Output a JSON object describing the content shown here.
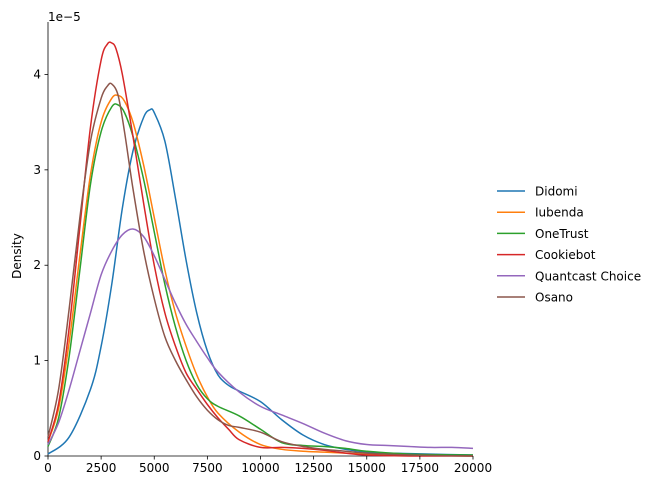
{
  "chart_data": {
    "type": "line",
    "title": "",
    "xlabel": "",
    "ylabel": "Density",
    "y_offset_text": "1e−5",
    "xlim": [
      0,
      20000
    ],
    "ylim": [
      0,
      4.55
    ],
    "y_scale": "×1e-5",
    "grid": false,
    "legend_position": "right (outside plot)",
    "x_ticks": [
      0,
      2500,
      5000,
      7500,
      10000,
      12500,
      15000,
      17500,
      20000
    ],
    "x_tick_labels": [
      "0",
      "2500",
      "5000",
      "7500",
      "10000",
      "12500",
      "15000",
      "17500",
      "20000"
    ],
    "y_ticks": [
      0,
      1,
      2,
      3,
      4
    ],
    "y_tick_labels": [
      "0",
      "1",
      "2",
      "3",
      "4"
    ],
    "series": [
      {
        "name": "Didomi",
        "color": "#1f77b4",
        "x": [
          0,
          1000,
          2000,
          2500,
          3000,
          3500,
          4000,
          4500,
          4800,
          5000,
          5500,
          6000,
          6500,
          7000,
          7500,
          8000,
          8500,
          9000,
          10000,
          11000,
          12000,
          13000,
          14000,
          15000,
          16000,
          18000,
          20000
        ],
        "y": [
          0.02,
          0.2,
          0.7,
          1.15,
          1.8,
          2.6,
          3.2,
          3.55,
          3.63,
          3.6,
          3.3,
          2.7,
          2.05,
          1.5,
          1.1,
          0.85,
          0.74,
          0.68,
          0.57,
          0.38,
          0.22,
          0.12,
          0.07,
          0.04,
          0.03,
          0.02,
          0.01
        ]
      },
      {
        "name": "Iubenda",
        "color": "#ff7f0e",
        "x": [
          0,
          500,
          1000,
          1500,
          2000,
          2500,
          3000,
          3300,
          3600,
          4000,
          4500,
          5000,
          5500,
          6000,
          6500,
          7000,
          7500,
          8000,
          9000,
          10000,
          11000,
          12000,
          13000,
          14000,
          15000,
          17000,
          20000
        ],
        "y": [
          0.15,
          0.5,
          1.2,
          2.1,
          2.95,
          3.5,
          3.75,
          3.78,
          3.72,
          3.5,
          3.05,
          2.5,
          1.95,
          1.5,
          1.15,
          0.85,
          0.62,
          0.45,
          0.25,
          0.12,
          0.07,
          0.05,
          0.04,
          0.03,
          0.02,
          0.01,
          0.0
        ]
      },
      {
        "name": "OneTrust",
        "color": "#2ca02c",
        "x": [
          0,
          500,
          1000,
          1500,
          2000,
          2500,
          3000,
          3300,
          3600,
          4000,
          4500,
          5000,
          5500,
          6000,
          6500,
          7000,
          7500,
          8000,
          9000,
          10000,
          11000,
          12000,
          13000,
          14000,
          15000,
          17000,
          20000
        ],
        "y": [
          0.1,
          0.4,
          1.05,
          1.95,
          2.85,
          3.4,
          3.66,
          3.68,
          3.6,
          3.35,
          2.9,
          2.35,
          1.8,
          1.35,
          1.0,
          0.75,
          0.6,
          0.52,
          0.42,
          0.28,
          0.14,
          0.11,
          0.1,
          0.08,
          0.05,
          0.02,
          0.01
        ]
      },
      {
        "name": "Cookiebot",
        "color": "#d62728",
        "x": [
          0,
          500,
          1000,
          1500,
          2000,
          2500,
          2800,
          3000,
          3200,
          3500,
          4000,
          4500,
          5000,
          5500,
          6000,
          6500,
          7000,
          7500,
          8000,
          8500,
          9000,
          10000,
          11000,
          12000,
          13000,
          14000,
          15000,
          17000,
          20000
        ],
        "y": [
          0.15,
          0.55,
          1.35,
          2.4,
          3.45,
          4.15,
          4.32,
          4.33,
          4.27,
          4.0,
          3.35,
          2.65,
          2.0,
          1.5,
          1.15,
          0.87,
          0.7,
          0.54,
          0.4,
          0.28,
          0.17,
          0.09,
          0.09,
          0.08,
          0.06,
          0.03,
          0.01,
          0.0,
          0.0
        ]
      },
      {
        "name": "Quantcast Choice",
        "color": "#9467bd",
        "x": [
          0,
          500,
          1000,
          1500,
          2000,
          2500,
          3000,
          3500,
          4000,
          4500,
          5000,
          5500,
          6000,
          6500,
          7000,
          7500,
          8000,
          9000,
          10000,
          11000,
          12000,
          13000,
          14000,
          15000,
          16000,
          17000,
          18000,
          19000,
          20000
        ],
        "y": [
          0.12,
          0.35,
          0.7,
          1.1,
          1.5,
          1.9,
          2.15,
          2.32,
          2.38,
          2.3,
          2.1,
          1.85,
          1.6,
          1.38,
          1.2,
          1.03,
          0.88,
          0.67,
          0.52,
          0.43,
          0.34,
          0.24,
          0.16,
          0.12,
          0.11,
          0.1,
          0.09,
          0.09,
          0.08
        ]
      },
      {
        "name": "Osano",
        "color": "#8c564b",
        "x": [
          0,
          500,
          1000,
          1500,
          2000,
          2500,
          2800,
          3000,
          3300,
          3600,
          4000,
          4500,
          5000,
          5500,
          6000,
          6500,
          7000,
          7500,
          8000,
          8500,
          9000,
          10000,
          11000,
          12000,
          13000,
          14000,
          15000,
          17000,
          20000
        ],
        "y": [
          0.2,
          0.7,
          1.55,
          2.5,
          3.3,
          3.75,
          3.88,
          3.9,
          3.78,
          3.4,
          2.8,
          2.15,
          1.65,
          1.25,
          1.0,
          0.8,
          0.62,
          0.48,
          0.38,
          0.32,
          0.3,
          0.25,
          0.15,
          0.1,
          0.07,
          0.05,
          0.03,
          0.01,
          0.0
        ]
      }
    ]
  }
}
